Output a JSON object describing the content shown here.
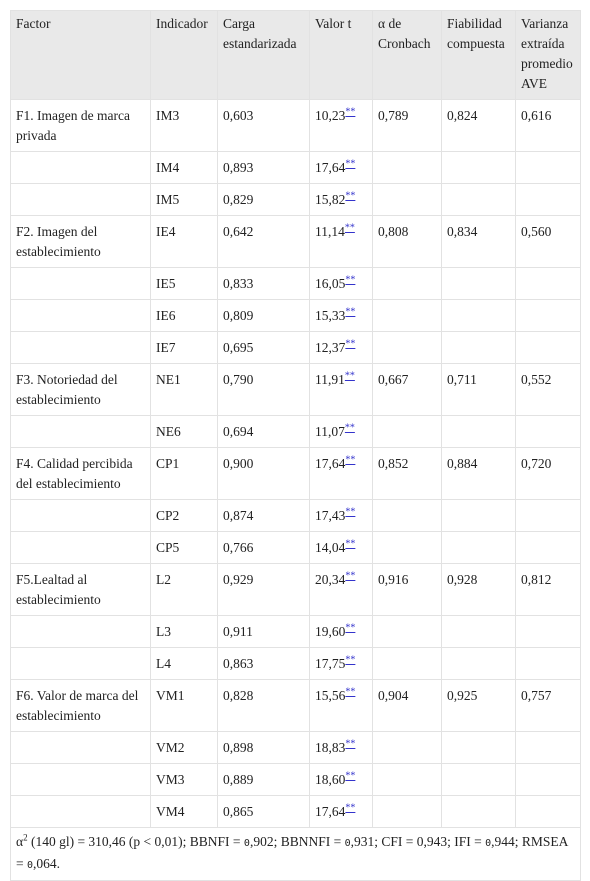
{
  "table": {
    "headers": [
      "Factor",
      "Indicador",
      "Carga estandarizada",
      "Valor t",
      "α de Cronbach",
      "Fiabilidad compuesta",
      "Varianza extraída promedio AVE"
    ],
    "factors": [
      {
        "name": "F1. Imagen de marca privada",
        "alpha": "0,789",
        "fiabilidad": "0,824",
        "ave": "0,616",
        "indicators": [
          {
            "name": "IM3",
            "carga": "0,603",
            "t": "10,23",
            "sig": "**"
          },
          {
            "name": "IM4",
            "carga": "0,893",
            "t": "17,64",
            "sig": "**"
          },
          {
            "name": "IM5",
            "carga": "0,829",
            "t": "15,82",
            "sig": "**"
          }
        ]
      },
      {
        "name": "F2. Imagen del establecimiento",
        "alpha": "0,808",
        "fiabilidad": "0,834",
        "ave": "0,560",
        "indicators": [
          {
            "name": "IE4",
            "carga": "0,642",
            "t": "11,14",
            "sig": "**"
          },
          {
            "name": "IE5",
            "carga": "0,833",
            "t": "16,05",
            "sig": "**"
          },
          {
            "name": "IE6",
            "carga": "0,809",
            "t": "15,33",
            "sig": "**"
          },
          {
            "name": "IE7",
            "carga": "0,695",
            "t": "12,37",
            "sig": "**"
          }
        ]
      },
      {
        "name": "F3. Notoriedad del establecimiento",
        "alpha": "0,667",
        "fiabilidad": "0,711",
        "ave": "0,552",
        "indicators": [
          {
            "name": "NE1",
            "carga": "0,790",
            "t": "11,91",
            "sig": "**"
          },
          {
            "name": "NE6",
            "carga": "0,694",
            "t": "11,07",
            "sig": "**"
          }
        ]
      },
      {
        "name": "F4. Calidad percibida del establecimiento",
        "alpha": "0,852",
        "fiabilidad": "0,884",
        "ave": "0,720",
        "indicators": [
          {
            "name": "CP1",
            "carga": "0,900",
            "t": "17,64",
            "sig": "**"
          },
          {
            "name": "CP2",
            "carga": "0,874",
            "t": "17,43",
            "sig": "**"
          },
          {
            "name": "CP5",
            "carga": "0,766",
            "t": "14,04",
            "sig": "**"
          }
        ]
      },
      {
        "name": "F5.Lealtad al establecimiento",
        "alpha": "0,916",
        "fiabilidad": "0,928",
        "ave": "0,812",
        "indicators": [
          {
            "name": "L2",
            "carga": "0,929",
            "t": "20,34",
            "sig": "**"
          },
          {
            "name": "L3",
            "carga": "0,911",
            "t": "19,60",
            "sig": "**"
          },
          {
            "name": "L4",
            "carga": "0,863",
            "t": "17,75",
            "sig": "**"
          }
        ]
      },
      {
        "name": "F6. Valor de marca del establecimiento",
        "alpha": "0,904",
        "fiabilidad": "0,925",
        "ave": "0,757",
        "indicators": [
          {
            "name": "VM1",
            "carga": "0,828",
            "t": "15,56",
            "sig": "**"
          },
          {
            "name": "VM2",
            "carga": "0,898",
            "t": "18,83",
            "sig": "**"
          },
          {
            "name": "VM3",
            "carga": "0,889",
            "t": "18,60",
            "sig": "**"
          },
          {
            "name": "VM4",
            "carga": "0,865",
            "t": "17,64",
            "sig": "**"
          }
        ]
      }
    ],
    "footer": [
      "α",
      "2",
      " (140 gl) = 310,46 (p < 0,01); BBNFI = ",
      "0",
      ",902; BBNNFI = ",
      "0",
      ",931; CFI = 0,943; IFI = ",
      "0",
      ",944; RMSEA = ",
      "0",
      ",064."
    ]
  }
}
